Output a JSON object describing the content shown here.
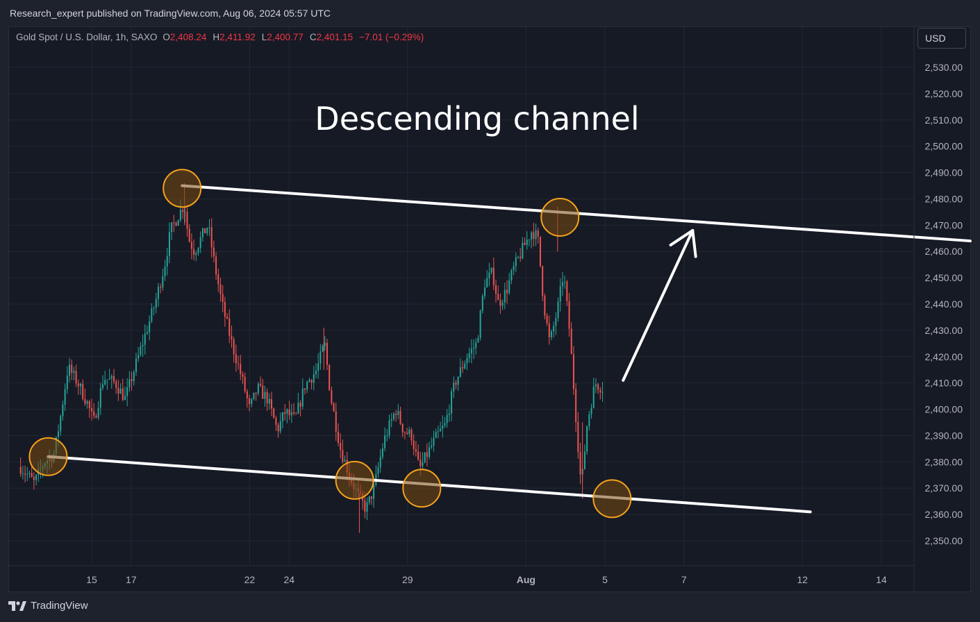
{
  "header": {
    "published": "Research_expert published on TradingView.com, Aug 06, 2024 05:57 UTC"
  },
  "legend": {
    "symbol": "Gold Spot / U.S. Dollar, 1h, SAXO",
    "o_label": "O",
    "o_value": "2,408.24",
    "h_label": "H",
    "h_value": "2,411.92",
    "l_label": "L",
    "l_value": "2,400.77",
    "c_label": "C",
    "c_value": "2,401.15",
    "change": "−7.01 (−0.29%)"
  },
  "currency_button": {
    "label": "USD"
  },
  "footer": {
    "brand": "TradingView"
  },
  "colors": {
    "up": "#26a69a",
    "down": "#ef5350",
    "channel_line": "#ffffff",
    "marker_fill": "#7a4a10",
    "marker_stroke": "#f7a21b",
    "grid": "#232733",
    "axis_text": "#b2b5be"
  },
  "chart_data": {
    "type": "candlestick",
    "title": "Descending channel",
    "timeframe": "1h",
    "y_axis": {
      "ticks": [
        2350,
        2360,
        2370,
        2380,
        2390,
        2400,
        2410,
        2420,
        2430,
        2440,
        2450,
        2460,
        2470,
        2480,
        2490,
        2500,
        2510,
        2520,
        2530
      ],
      "tick_labels": [
        "2,350.00",
        "2,360.00",
        "2,370.00",
        "2,380.00",
        "2,390.00",
        "2,400.00",
        "2,410.00",
        "2,420.00",
        "2,430.00",
        "2,440.00",
        "2,450.00",
        "2,460.00",
        "2,470.00",
        "2,480.00",
        "2,490.00",
        "2,500.00",
        "2,510.00",
        "2,520.00",
        "2,530.00"
      ],
      "ylim": [
        2343,
        2542
      ]
    },
    "x_axis": {
      "tick_labels": [
        "15",
        "17",
        "22",
        "24",
        "29",
        "Aug",
        "5",
        "7",
        "12",
        "14"
      ],
      "tick_days": [
        1,
        2,
        5,
        6,
        9,
        12,
        14,
        16,
        19,
        21
      ]
    },
    "grid": true,
    "price_path": [
      [
        -0.8,
        2378
      ],
      [
        -0.45,
        2372
      ],
      [
        -0.2,
        2380
      ],
      [
        0.05,
        2383
      ],
      [
        0.22,
        2398
      ],
      [
        0.4,
        2416
      ],
      [
        0.65,
        2410
      ],
      [
        0.9,
        2402
      ],
      [
        1.05,
        2395
      ],
      [
        1.3,
        2412
      ],
      [
        1.6,
        2410
      ],
      [
        1.85,
        2404
      ],
      [
        2.2,
        2421
      ],
      [
        2.6,
        2440
      ],
      [
        2.85,
        2455
      ],
      [
        3.0,
        2468
      ],
      [
        3.2,
        2474
      ],
      [
        3.35,
        2478
      ],
      [
        3.45,
        2465
      ],
      [
        3.6,
        2460
      ],
      [
        3.8,
        2466
      ],
      [
        3.95,
        2470
      ],
      [
        4.1,
        2456
      ],
      [
        4.3,
        2440
      ],
      [
        4.55,
        2425
      ],
      [
        4.8,
        2412
      ],
      [
        5.0,
        2400
      ],
      [
        5.2,
        2408
      ],
      [
        5.45,
        2404
      ],
      [
        5.7,
        2392
      ],
      [
        5.9,
        2399
      ],
      [
        6.15,
        2396
      ],
      [
        6.4,
        2409
      ],
      [
        6.7,
        2415
      ],
      [
        6.9,
        2425
      ],
      [
        7.05,
        2405
      ],
      [
        7.3,
        2385
      ],
      [
        7.55,
        2374
      ],
      [
        7.75,
        2367
      ],
      [
        7.95,
        2362
      ],
      [
        8.15,
        2370
      ],
      [
        8.4,
        2388
      ],
      [
        8.7,
        2400
      ],
      [
        8.9,
        2392
      ],
      [
        9.1,
        2390
      ],
      [
        9.3,
        2377
      ],
      [
        9.5,
        2383
      ],
      [
        9.75,
        2390
      ],
      [
        9.95,
        2394
      ],
      [
        10.2,
        2410
      ],
      [
        10.5,
        2420
      ],
      [
        10.75,
        2425
      ],
      [
        10.95,
        2448
      ],
      [
        11.15,
        2452
      ],
      [
        11.3,
        2440
      ],
      [
        11.5,
        2445
      ],
      [
        11.7,
        2454
      ],
      [
        11.95,
        2462
      ],
      [
        12.15,
        2468
      ],
      [
        12.3,
        2465
      ],
      [
        12.45,
        2440
      ],
      [
        12.6,
        2425
      ],
      [
        12.8,
        2438
      ],
      [
        12.95,
        2452
      ],
      [
        13.1,
        2430
      ],
      [
        13.25,
        2400
      ],
      [
        13.4,
        2370
      ],
      [
        13.55,
        2395
      ],
      [
        13.75,
        2410
      ],
      [
        13.95,
        2408
      ]
    ],
    "upper_channel": [
      [
        3.29,
        2485
      ],
      [
        23.25,
        2464
      ]
    ],
    "lower_channel": [
      [
        -0.1,
        2382
      ],
      [
        19.2,
        2361
      ]
    ],
    "touch_points": [
      [
        3.29,
        2484
      ],
      [
        12.86,
        2473
      ],
      [
        -0.1,
        2382
      ],
      [
        7.66,
        2373
      ],
      [
        9.36,
        2370
      ],
      [
        14.18,
        2366
      ]
    ],
    "arrow": {
      "from": [
        14.46,
        2411
      ],
      "to": [
        16.22,
        2468
      ]
    }
  }
}
